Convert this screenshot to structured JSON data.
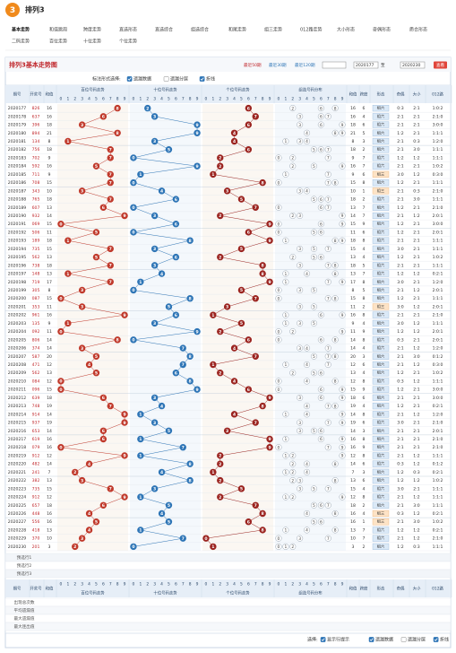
{
  "header": {
    "logo": "3",
    "title": "排列3"
  },
  "nav": [
    [
      "基本走势",
      "和值跳周",
      "跨度走势",
      "直选形态",
      "直选综合",
      "组选综合",
      "和尾走势",
      "组三走势",
      "012路走势",
      "大小形态",
      "奇偶形态",
      "质合形态"
    ],
    [
      "二码走势",
      "百位走势",
      "十位走势",
      "个位走势"
    ]
  ],
  "panel": {
    "title": "排列3基本走势图",
    "recent": [
      "最近50期",
      "最近30期",
      "最近120期"
    ],
    "from": "2020177",
    "to_label": "至",
    "to": "2020230",
    "go": "查看"
  },
  "options": {
    "label": "标注形式选择:",
    "items": [
      {
        "text": "遗漏数据",
        "checked": true
      },
      {
        "text": "遗漏分层",
        "checked": false
      },
      {
        "text": "折线",
        "checked": true
      }
    ]
  },
  "table": {
    "headers": [
      "期号",
      "开奖号",
      "和值",
      "百位号码走势",
      "十位号码走势",
      "个位号码走势",
      "组选号码分布",
      "和值",
      "跨度",
      "形态",
      "奇偶",
      "大小",
      "012路"
    ],
    "digits": [
      0,
      1,
      2,
      3,
      4,
      5,
      6,
      7,
      8,
      9
    ],
    "zone_colors": [
      "#c0392b",
      "#2e75b6",
      "#9b2420"
    ],
    "rows": [
      [
        "2020177",
        "826",
        [
          8,
          2,
          6
        ],
        16,
        6,
        "0:3",
        "2:1",
        "1:0:2",
        "组六"
      ],
      [
        "2020178",
        "637",
        [
          6,
          3,
          7
        ],
        16,
        4,
        "2:1",
        "2:1",
        "2:1:0",
        "组六"
      ],
      [
        "2020179",
        "396",
        [
          3,
          9,
          6
        ],
        18,
        6,
        "2:1",
        "2:1",
        "3:0:0",
        "组六"
      ],
      [
        "2020180",
        "894",
        [
          8,
          9,
          4
        ],
        21,
        5,
        "1:2",
        "2:1",
        "1:1:1",
        "组六"
      ],
      [
        "2020181",
        "134",
        [
          1,
          3,
          4
        ],
        8,
        3,
        "2:1",
        "0:3",
        "1:2:0",
        "组六"
      ],
      [
        "2020182",
        "756",
        [
          7,
          5,
          6
        ],
        18,
        2,
        "2:1",
        "3:0",
        "1:1:1",
        "组六"
      ],
      [
        "2020183",
        "702",
        [
          7,
          0,
          2
        ],
        9,
        7,
        "1:2",
        "1:2",
        "1:1:1",
        "组六"
      ],
      [
        "2020184",
        "592",
        [
          5,
          9,
          2
        ],
        16,
        7,
        "2:1",
        "2:1",
        "1:0:2",
        "组六"
      ],
      [
        "2020185",
        "711",
        [
          7,
          1,
          1
        ],
        9,
        6,
        "3:0",
        "1:2",
        "0:3:0",
        "组三"
      ],
      [
        "2020186",
        "708",
        [
          7,
          0,
          8
        ],
        15,
        8,
        "1:2",
        "2:1",
        "1:1:1",
        "组六"
      ],
      [
        "2020187",
        "343",
        [
          3,
          4,
          3
        ],
        10,
        1,
        "2:1",
        "0:3",
        "2:1:0",
        "组三"
      ],
      [
        "2020188",
        "765",
        [
          7,
          6,
          5
        ],
        18,
        2,
        "2:1",
        "3:0",
        "1:1:1",
        "组六"
      ],
      [
        "2020189",
        "607",
        [
          6,
          0,
          7
        ],
        13,
        7,
        "1:2",
        "2:1",
        "2:1:0",
        "组六"
      ],
      [
        "2020190",
        "932",
        [
          9,
          3,
          2
        ],
        14,
        7,
        "2:1",
        "1:2",
        "2:0:1",
        "组六"
      ],
      [
        "2020191",
        "069",
        [
          0,
          6,
          9
        ],
        15,
        9,
        "1:2",
        "2:1",
        "3:0:0",
        "组六"
      ],
      [
        "2020192",
        "506",
        [
          5,
          0,
          6
        ],
        11,
        6,
        "1:2",
        "2:1",
        "2:0:1",
        "组六"
      ],
      [
        "2020193",
        "189",
        [
          1,
          8,
          9
        ],
        18,
        8,
        "2:1",
        "2:1",
        "1:1:1",
        "组六"
      ],
      [
        "2020194",
        "735",
        [
          7,
          3,
          5
        ],
        15,
        4,
        "3:0",
        "2:1",
        "1:1:1",
        "组六"
      ],
      [
        "2020195",
        "562",
        [
          5,
          6,
          2
        ],
        13,
        4,
        "1:2",
        "2:1",
        "1:0:2",
        "组六"
      ],
      [
        "2020196",
        "738",
        [
          7,
          3,
          8
        ],
        18,
        5,
        "2:1",
        "2:1",
        "1:1:1",
        "组六"
      ],
      [
        "2020197",
        "148",
        [
          1,
          4,
          8
        ],
        13,
        7,
        "1:2",
        "1:2",
        "0:2:1",
        "组六"
      ],
      [
        "2020198",
        "719",
        [
          7,
          1,
          9
        ],
        17,
        8,
        "3:0",
        "2:1",
        "1:2:0",
        "组六"
      ],
      [
        "2020199",
        "305",
        [
          3,
          0,
          5
        ],
        8,
        5,
        "2:1",
        "1:2",
        "2:0:1",
        "组六"
      ],
      [
        "2020200",
        "087",
        [
          0,
          8,
          7
        ],
        15,
        8,
        "1:2",
        "2:1",
        "1:1:1",
        "组六"
      ],
      [
        "2020201",
        "353",
        [
          3,
          5,
          3
        ],
        11,
        2,
        "3:0",
        "1:2",
        "2:0:1",
        "组三"
      ],
      [
        "2020202",
        "961",
        [
          9,
          6,
          1
        ],
        16,
        8,
        "2:1",
        "2:1",
        "2:1:0",
        "组六"
      ],
      [
        "2020203",
        "135",
        [
          1,
          3,
          5
        ],
        9,
        4,
        "3:0",
        "1:2",
        "1:1:1",
        "组六"
      ],
      [
        "2020204",
        "092",
        [
          0,
          9,
          2
        ],
        11,
        9,
        "1:2",
        "1:2",
        "2:0:1",
        "组六"
      ],
      [
        "2020205",
        "806",
        [
          8,
          0,
          6
        ],
        14,
        8,
        "0:3",
        "2:1",
        "2:0:1",
        "组六"
      ],
      [
        "2020206",
        "374",
        [
          3,
          7,
          4
        ],
        14,
        4,
        "2:1",
        "1:2",
        "1:2:0",
        "组六"
      ],
      [
        "2020207",
        "587",
        [
          5,
          8,
          7
        ],
        20,
        3,
        "2:1",
        "3:0",
        "0:1:2",
        "组六"
      ],
      [
        "2020208",
        "471",
        [
          4,
          7,
          1
        ],
        12,
        6,
        "2:1",
        "1:2",
        "0:3:0",
        "组六"
      ],
      [
        "2020209",
        "562",
        [
          5,
          6,
          2
        ],
        13,
        4,
        "1:2",
        "2:1",
        "1:0:2",
        "组六"
      ],
      [
        "2020210",
        "084",
        [
          0,
          8,
          4
        ],
        12,
        8,
        "0:3",
        "1:2",
        "1:1:1",
        "组六"
      ],
      [
        "2020211",
        "096",
        [
          0,
          9,
          6
        ],
        15,
        9,
        "1:2",
        "2:1",
        "3:0:0",
        "组六"
      ],
      [
        "2020212",
        "639",
        [
          6,
          3,
          9
        ],
        18,
        6,
        "2:1",
        "2:1",
        "3:0:0",
        "组六"
      ],
      [
        "2020213",
        "748",
        [
          7,
          4,
          8
        ],
        19,
        4,
        "1:2",
        "2:1",
        "0:2:1",
        "组六"
      ],
      [
        "2020214",
        "914",
        [
          9,
          1,
          4
        ],
        14,
        8,
        "2:1",
        "1:2",
        "1:2:0",
        "组六"
      ],
      [
        "2020215",
        "937",
        [
          9,
          3,
          7
        ],
        19,
        6,
        "3:0",
        "2:1",
        "2:1:0",
        "组六"
      ],
      [
        "2020216",
        "653",
        [
          6,
          5,
          3
        ],
        14,
        3,
        "2:1",
        "2:1",
        "2:0:1",
        "组六"
      ],
      [
        "2020217",
        "619",
        [
          6,
          1,
          9
        ],
        16,
        8,
        "2:1",
        "2:1",
        "2:1:0",
        "组六"
      ],
      [
        "2020218",
        "079",
        [
          0,
          7,
          9
        ],
        16,
        9,
        "2:1",
        "2:1",
        "2:1:0",
        "组六"
      ],
      [
        "2020219",
        "912",
        [
          9,
          1,
          2
        ],
        12,
        8,
        "2:1",
        "1:2",
        "1:1:1",
        "组六"
      ],
      [
        "2020220",
        "482",
        [
          4,
          8,
          2
        ],
        14,
        6,
        "0:3",
        "1:2",
        "0:1:2",
        "组六"
      ],
      [
        "2020221",
        "241",
        [
          2,
          4,
          1
        ],
        7,
        3,
        "1:2",
        "0:3",
        "0:2:1",
        "组六"
      ],
      [
        "2020222",
        "382",
        [
          3,
          8,
          2
        ],
        13,
        6,
        "1:2",
        "1:2",
        "1:0:2",
        "组六"
      ],
      [
        "2020223",
        "735",
        [
          7,
          3,
          5
        ],
        15,
        4,
        "3:0",
        "2:1",
        "1:1:1",
        "组六"
      ],
      [
        "2020224",
        "912",
        [
          9,
          1,
          2
        ],
        12,
        8,
        "2:1",
        "1:2",
        "1:1:1",
        "组六"
      ],
      [
        "2020225",
        "657",
        [
          6,
          5,
          7
        ],
        18,
        2,
        "2:1",
        "3:0",
        "1:1:1",
        "组六"
      ],
      [
        "2020226",
        "448",
        [
          4,
          4,
          8
        ],
        16,
        4,
        "0:3",
        "1:2",
        "0:2:1",
        "组三"
      ],
      [
        "2020227",
        "556",
        [
          5,
          5,
          6
        ],
        16,
        1,
        "2:1",
        "3:0",
        "1:0:2",
        "组三"
      ],
      [
        "2020228",
        "418",
        [
          4,
          1,
          8
        ],
        13,
        7,
        "1:2",
        "1:2",
        "0:2:1",
        "组六"
      ],
      [
        "2020229",
        "370",
        [
          3,
          7,
          0
        ],
        10,
        7,
        "2:1",
        "1:2",
        "2:1:0",
        "组六"
      ],
      [
        "2020230",
        "201",
        [
          2,
          0,
          1
        ],
        3,
        2,
        "1:2",
        "0:3",
        "1:1:1",
        "组六"
      ]
    ],
    "preselect": [
      "预选行1",
      "预选行2",
      "预选行3"
    ],
    "stats": [
      "出现总次数",
      "平均遗漏值",
      "最大遗漏值",
      "最大连出值"
    ]
  },
  "footer": {
    "label": "选择:",
    "items": [
      {
        "text": "显示行提示",
        "checked": true
      },
      {
        "text": "遗漏数据",
        "checked": true
      },
      {
        "text": "遗漏分层",
        "checked": false
      },
      {
        "text": "折线",
        "checked": true
      }
    ]
  }
}
